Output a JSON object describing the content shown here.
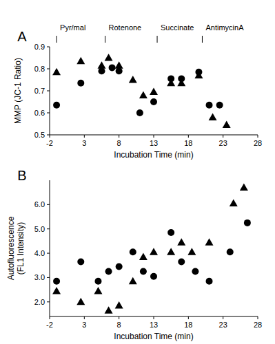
{
  "chart_data": [
    {
      "type": "scatter",
      "title": "A",
      "x_label": "Incubation Time (min)",
      "y_label": "MMP (JC-1 Ratio)",
      "xlim": [
        -2,
        28
      ],
      "xticks": [
        -2,
        3,
        8,
        13,
        18,
        23,
        28
      ],
      "ylim": [
        0.5,
        0.9
      ],
      "yticks": [
        0.5,
        0.6,
        0.7,
        0.8,
        0.9
      ],
      "grid": false,
      "annotations": [
        {
          "text": "Pyr/mal",
          "x": -1
        },
        {
          "text": "Rotenone",
          "x": 6
        },
        {
          "text": "Succinate",
          "x": 13.5
        },
        {
          "text": "AntimycinA",
          "x": 20
        }
      ],
      "series": [
        {
          "marker": "circle",
          "color": "#000000",
          "x": [
            -1,
            2.5,
            5.5,
            7,
            8,
            11,
            13,
            15.5,
            17,
            19.5,
            21,
            22.5
          ],
          "values": [
            0.635,
            0.735,
            0.79,
            0.805,
            0.79,
            0.6,
            0.65,
            0.755,
            0.755,
            0.785,
            0.635,
            0.635
          ]
        },
        {
          "marker": "triangle",
          "color": "#000000",
          "x": [
            -1,
            2.5,
            5.5,
            6.5,
            8,
            10,
            11.5,
            13,
            15.5,
            17,
            19.5,
            21.5,
            23.5
          ],
          "values": [
            0.785,
            0.835,
            0.815,
            0.85,
            0.815,
            0.75,
            0.68,
            0.695,
            0.735,
            0.735,
            0.77,
            0.58,
            0.545
          ]
        }
      ]
    },
    {
      "type": "scatter",
      "title": "B",
      "x_label": "Incubation Time (min)",
      "y_label": "Autofluorescence\n(FL1 Intensity)",
      "xlim": [
        -2,
        28
      ],
      "xticks": [
        -2,
        3,
        8,
        13,
        18,
        23,
        28
      ],
      "ylim": [
        1.4,
        7.0
      ],
      "yticks": [
        {
          "value": 2,
          "label": "2.0"
        },
        {
          "value": 3,
          "label": "3.0"
        },
        {
          "value": 4,
          "label": "4.0"
        },
        {
          "value": 5,
          "label": "5.0"
        },
        {
          "value": 6,
          "label": "6.0"
        }
      ],
      "grid": false,
      "series": [
        {
          "marker": "circle",
          "color": "#000000",
          "x": [
            -1,
            2.5,
            5,
            6.5,
            8,
            10,
            11.5,
            13,
            15.5,
            17,
            19,
            21,
            24,
            26.5
          ],
          "values": [
            2.85,
            3.65,
            2.85,
            3.25,
            3.45,
            4.05,
            3.25,
            3.05,
            4.85,
            3.65,
            3.25,
            2.85,
            4.05,
            5.25
          ]
        },
        {
          "marker": "triangle",
          "color": "#000000",
          "x": [
            -1,
            2.5,
            5,
            6.5,
            8,
            10,
            11.5,
            13,
            15.5,
            17,
            18.5,
            21,
            24.5,
            26
          ],
          "values": [
            2.45,
            2.0,
            2.45,
            1.65,
            1.85,
            2.85,
            3.85,
            4.05,
            4.05,
            4.45,
            4.05,
            4.45,
            6.05,
            6.7
          ]
        }
      ]
    }
  ]
}
